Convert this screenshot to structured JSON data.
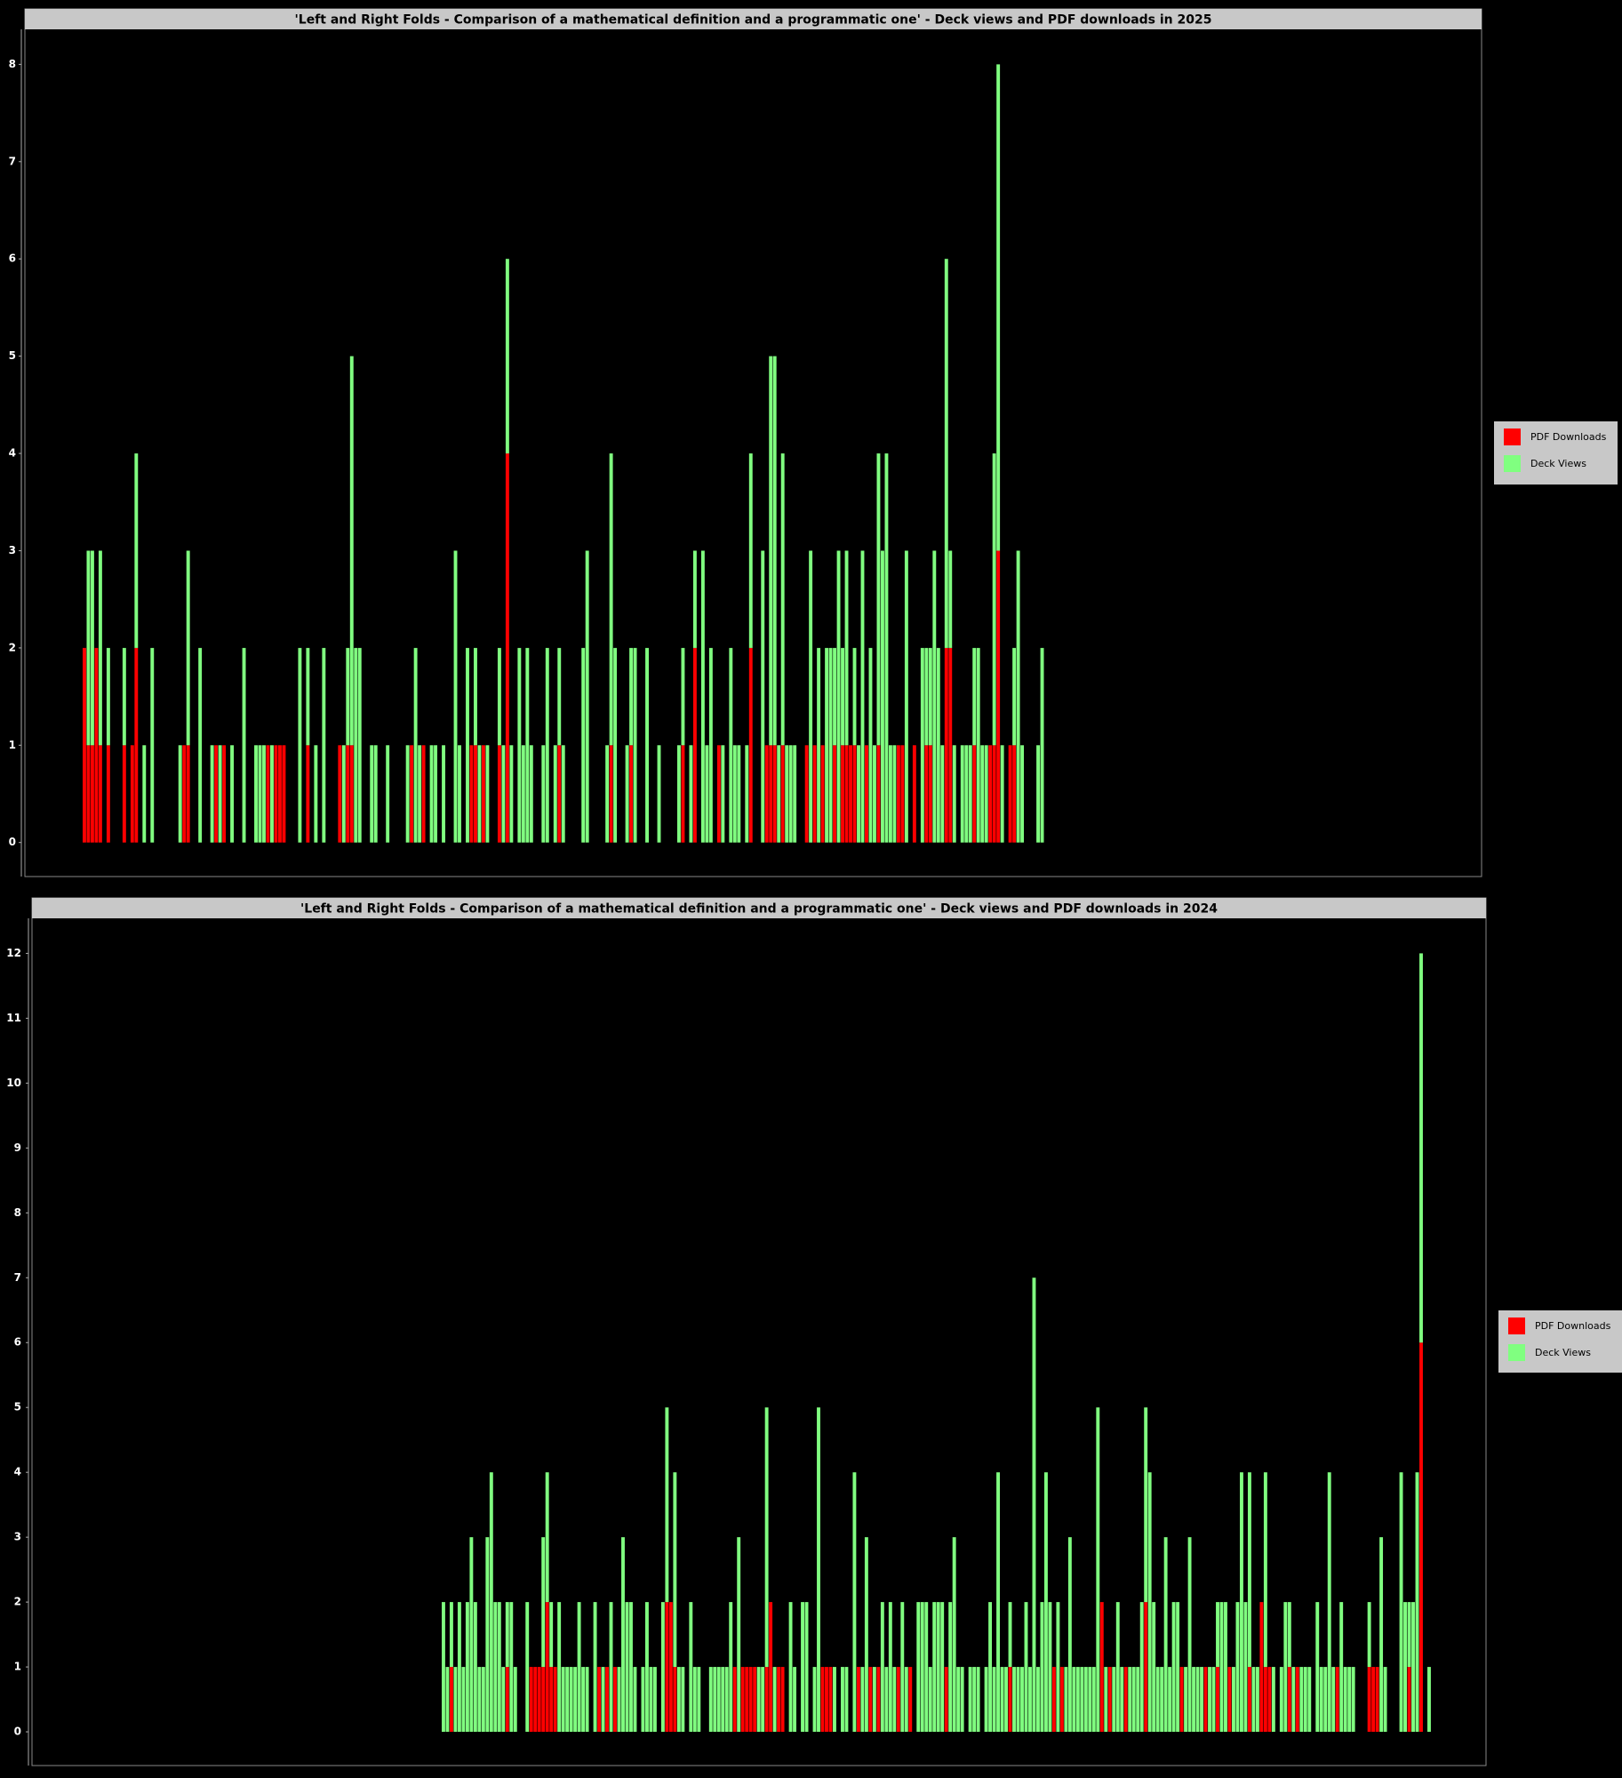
{
  "chart_data": [
    {
      "type": "bar",
      "stacked": true,
      "title": "'Left and Right Folds - Comparison of a mathematical definition and a programmatic one' - Deck views and PDF downloads in 2025",
      "ylim": [
        -0.35,
        8.36
      ],
      "yticks": [
        0,
        1,
        2,
        3,
        4,
        5,
        6,
        7,
        8
      ],
      "legend": "right",
      "series": [
        {
          "name": "PDF Downloads",
          "color": "#ff0000",
          "values": [
            2,
            1,
            1,
            2,
            1,
            0,
            1,
            0,
            0,
            0,
            1,
            0,
            1,
            2,
            0,
            0,
            0,
            0,
            0,
            0,
            0,
            0,
            0,
            0,
            0,
            1,
            1,
            0,
            0,
            0,
            0,
            0,
            0,
            1,
            0,
            1,
            0,
            0,
            0,
            0,
            0,
            0,
            0,
            0,
            0,
            0,
            1,
            0,
            1,
            1,
            1,
            0,
            0,
            0,
            0,
            0,
            1,
            0,
            0,
            0,
            0,
            0,
            0,
            0,
            1,
            0,
            1,
            1,
            0,
            0,
            0,
            0,
            0,
            0,
            0,
            0,
            0,
            0,
            0,
            0,
            0,
            0,
            1,
            0,
            0,
            1,
            0,
            0,
            0,
            0,
            0,
            0,
            0,
            0,
            0,
            0,
            0,
            1,
            1,
            0,
            1,
            0,
            0,
            0,
            1,
            0,
            4,
            0,
            0,
            0,
            0,
            0,
            0,
            0,
            0,
            0,
            0,
            0,
            0,
            1,
            0,
            0,
            0,
            0,
            0,
            0,
            0,
            0,
            0,
            0,
            0,
            0,
            1,
            0,
            0,
            0,
            0,
            1,
            0,
            0,
            0,
            0,
            0,
            0,
            0,
            0,
            0,
            0,
            0,
            0,
            1,
            0,
            0,
            2,
            0,
            0,
            0,
            0,
            0,
            1,
            0,
            0,
            0,
            0,
            0,
            0,
            0,
            2,
            0,
            0,
            0,
            1,
            1,
            1,
            0,
            1,
            0,
            0,
            0,
            0,
            0,
            1,
            0,
            1,
            0,
            1,
            0,
            0,
            1,
            0,
            1,
            1,
            1,
            1,
            0,
            0,
            1,
            0,
            0,
            1,
            0,
            0,
            0,
            0,
            1,
            1,
            0,
            0,
            1,
            0,
            0,
            1,
            1,
            0,
            0,
            0,
            2,
            2,
            0,
            0,
            0,
            0,
            0,
            1,
            0,
            0,
            0,
            1,
            1,
            3,
            0,
            0,
            1,
            1,
            0,
            0,
            0,
            0,
            0,
            0,
            0
          ]
        },
        {
          "name": "Deck Views",
          "color": "#80ff80",
          "values": [
            0,
            2,
            2,
            0,
            2,
            0,
            1,
            0,
            0,
            0,
            1,
            0,
            0,
            2,
            0,
            1,
            0,
            2,
            0,
            0,
            0,
            0,
            0,
            0,
            1,
            0,
            2,
            0,
            0,
            2,
            0,
            0,
            1,
            0,
            1,
            0,
            0,
            1,
            0,
            0,
            2,
            0,
            0,
            1,
            1,
            1,
            0,
            1,
            0,
            0,
            0,
            0,
            0,
            0,
            2,
            0,
            1,
            0,
            1,
            0,
            2,
            0,
            0,
            0,
            0,
            1,
            1,
            4,
            2,
            2,
            0,
            0,
            1,
            1,
            0,
            0,
            1,
            0,
            0,
            0,
            0,
            1,
            0,
            2,
            1,
            0,
            0,
            1,
            1,
            0,
            1,
            0,
            0,
            3,
            1,
            0,
            2,
            0,
            1,
            1,
            0,
            1,
            0,
            0,
            1,
            1,
            2,
            1,
            0,
            2,
            1,
            2,
            1,
            0,
            0,
            1,
            2,
            0,
            1,
            1,
            1,
            0,
            0,
            0,
            0,
            2,
            3,
            0,
            0,
            0,
            0,
            1,
            3,
            2,
            0,
            0,
            1,
            1,
            2,
            0,
            0,
            2,
            0,
            0,
            1,
            0,
            0,
            0,
            0,
            1,
            1,
            0,
            1,
            1,
            0,
            3,
            1,
            2,
            0,
            0,
            1,
            0,
            2,
            1,
            1,
            0,
            1,
            2,
            0,
            0,
            3,
            0,
            4,
            4,
            1,
            3,
            1,
            1,
            1,
            0,
            0,
            0,
            3,
            0,
            2,
            0,
            2,
            2,
            1,
            3,
            1,
            2,
            0,
            1,
            1,
            3,
            0,
            2,
            1,
            3,
            3,
            4,
            1,
            1,
            0,
            0,
            3,
            0,
            0,
            0,
            2,
            1,
            1,
            3,
            2,
            1,
            4,
            1,
            1,
            0,
            1,
            1,
            1,
            1,
            2,
            1,
            1,
            0,
            3,
            5,
            1,
            0,
            0,
            1,
            3,
            1,
            0,
            0,
            0,
            1,
            2
          ]
        }
      ]
    },
    {
      "type": "bar",
      "stacked": true,
      "title": "'Left and Right Folds - Comparison of a mathematical definition and a programmatic one' - Deck views and PDF downloads in 2024",
      "ylim": [
        -0.52,
        12.54
      ],
      "yticks": [
        0,
        1,
        2,
        3,
        4,
        5,
        6,
        7,
        8,
        9,
        10,
        11,
        12
      ],
      "legend": "right",
      "series": [
        {
          "name": "PDF Downloads",
          "color": "#ff0000",
          "values": [
            0,
            0,
            1,
            0,
            0,
            0,
            0,
            0,
            0,
            0,
            0,
            0,
            0,
            0,
            0,
            0,
            1,
            0,
            0,
            0,
            0,
            0,
            1,
            1,
            1,
            1,
            2,
            1,
            1,
            0,
            0,
            0,
            0,
            0,
            0,
            0,
            0,
            0,
            0,
            1,
            0,
            1,
            0,
            1,
            0,
            0,
            0,
            0,
            0,
            0,
            0,
            0,
            0,
            0,
            0,
            0,
            2,
            2,
            1,
            0,
            0,
            0,
            0,
            0,
            0,
            0,
            0,
            0,
            0,
            0,
            0,
            0,
            0,
            1,
            0,
            1,
            1,
            1,
            1,
            0,
            0,
            1,
            2,
            0,
            1,
            1,
            0,
            0,
            0,
            0,
            0,
            0,
            0,
            0,
            0,
            1,
            1,
            1,
            0,
            0,
            0,
            0,
            0,
            0,
            1,
            0,
            0,
            1,
            0,
            1,
            0,
            0,
            0,
            0,
            1,
            0,
            0,
            1,
            0,
            0,
            0,
            0,
            0,
            0,
            0,
            0,
            1,
            0,
            0,
            0,
            0,
            0,
            0,
            0,
            0,
            0,
            0,
            0,
            0,
            0,
            0,
            0,
            1,
            0,
            0,
            0,
            0,
            0,
            0,
            0,
            0,
            0,
            0,
            1,
            0,
            1,
            0,
            0,
            0,
            0,
            0,
            0,
            0,
            0,
            0,
            2,
            0,
            1,
            0,
            0,
            0,
            1,
            0,
            0,
            0,
            0,
            2,
            0,
            0,
            0,
            0,
            0,
            0,
            0,
            0,
            1,
            0,
            0,
            0,
            0,
            0,
            1,
            0,
            0,
            1,
            0,
            0,
            1,
            0,
            0,
            0,
            0,
            1,
            0,
            0,
            2,
            1,
            1,
            0,
            0,
            0,
            0,
            1,
            0,
            1,
            0,
            0,
            0,
            0,
            0,
            0,
            0,
            0,
            0,
            1,
            0,
            0,
            0,
            0,
            0,
            0,
            0,
            1,
            1,
            1,
            0,
            0,
            0,
            0,
            0,
            0,
            0,
            1,
            0,
            0,
            6,
            0,
            0
          ]
        },
        {
          "name": "Deck Views",
          "color": "#80ff80",
          "values": [
            2,
            1,
            1,
            1,
            2,
            1,
            2,
            3,
            2,
            1,
            1,
            3,
            4,
            2,
            2,
            1,
            1,
            2,
            1,
            0,
            0,
            2,
            0,
            0,
            0,
            2,
            2,
            1,
            0,
            2,
            1,
            1,
            1,
            1,
            2,
            1,
            1,
            0,
            2,
            0,
            1,
            0,
            2,
            0,
            1,
            3,
            2,
            2,
            1,
            0,
            1,
            2,
            1,
            1,
            0,
            2,
            3,
            0,
            3,
            1,
            1,
            0,
            2,
            1,
            1,
            0,
            0,
            1,
            1,
            1,
            1,
            1,
            2,
            0,
            3,
            0,
            0,
            0,
            0,
            1,
            1,
            4,
            0,
            1,
            0,
            0,
            0,
            2,
            1,
            0,
            2,
            2,
            0,
            1,
            5,
            0,
            0,
            0,
            1,
            0,
            1,
            1,
            0,
            4,
            0,
            1,
            3,
            0,
            1,
            0,
            2,
            1,
            2,
            1,
            0,
            2,
            1,
            0,
            0,
            2,
            2,
            2,
            1,
            2,
            2,
            2,
            0,
            2,
            3,
            1,
            1,
            0,
            1,
            1,
            1,
            0,
            1,
            2,
            1,
            4,
            1,
            1,
            1,
            1,
            1,
            1,
            2,
            1,
            7,
            1,
            2,
            4,
            2,
            0,
            2,
            0,
            1,
            3,
            1,
            1,
            1,
            1,
            1,
            1,
            5,
            0,
            1,
            0,
            1,
            2,
            1,
            0,
            1,
            1,
            1,
            2,
            3,
            4,
            2,
            1,
            1,
            3,
            1,
            2,
            2,
            0,
            1,
            3,
            1,
            1,
            1,
            0,
            1,
            1,
            1,
            2,
            2,
            0,
            1,
            2,
            4,
            2,
            3,
            1,
            1,
            0,
            3,
            0,
            1,
            0,
            1,
            2,
            1,
            1,
            0,
            1,
            1,
            1,
            0,
            2,
            1,
            1,
            4,
            1,
            0,
            2,
            1,
            1,
            1,
            0,
            0,
            0,
            1,
            0,
            0,
            3,
            1,
            0,
            0,
            0,
            4,
            2,
            1,
            2,
            4,
            6,
            0,
            1
          ]
        }
      ]
    }
  ]
}
